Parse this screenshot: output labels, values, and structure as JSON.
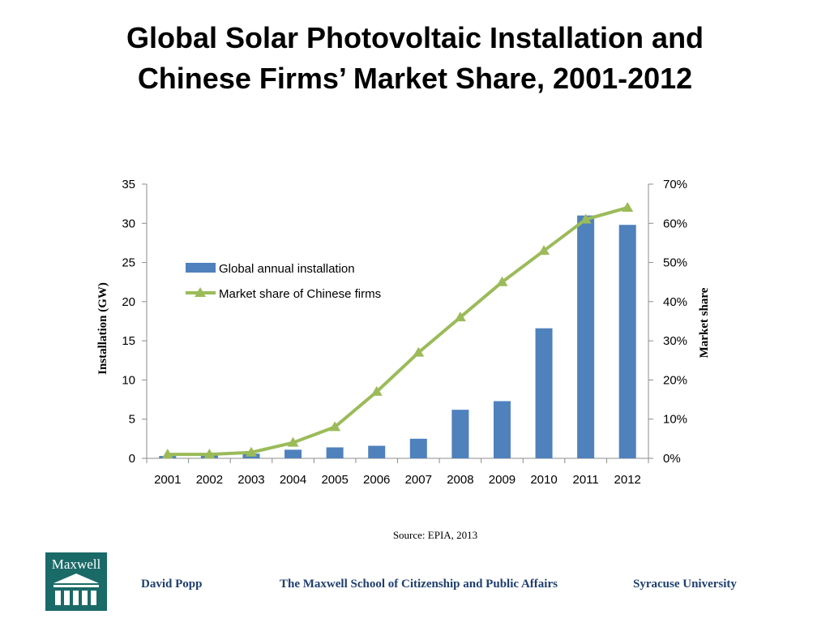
{
  "slide": {
    "title_line1": "Global Solar Photovoltaic Installation and",
    "title_line2": "Chinese Firms’ Market Share, 2001-2012",
    "source": "Source: EPIA, 2013",
    "logo_text": "Maxwell",
    "logo_color": "#1a6a68",
    "footer": {
      "author": "David Popp",
      "school": "The Maxwell School of Citizenship and Public Affairs",
      "university": "Syracuse University",
      "color": "#1f3f6f"
    }
  },
  "chart_data": {
    "type": "bar",
    "categories": [
      "2001",
      "2002",
      "2003",
      "2004",
      "2005",
      "2006",
      "2007",
      "2008",
      "2009",
      "2010",
      "2011",
      "2012"
    ],
    "series": [
      {
        "name": "Global annual installation",
        "type": "bar",
        "axis": "left",
        "color": "#4f81bd",
        "values": [
          0.3,
          0.4,
          0.6,
          1.1,
          1.4,
          1.6,
          2.5,
          6.2,
          7.3,
          16.6,
          31.0,
          29.8
        ]
      },
      {
        "name": "Market share of Chinese firms",
        "type": "line",
        "axis": "right",
        "color": "#9bbb59",
        "marker": "triangle",
        "values": [
          1,
          1,
          1.5,
          4,
          8,
          17,
          27,
          36,
          45,
          53,
          61,
          64
        ]
      }
    ],
    "ylabel": "Installation (GW)",
    "y2label": "Market share",
    "ylim": [
      0,
      35
    ],
    "y2lim": [
      0,
      70
    ],
    "yticks": [
      "0",
      "5",
      "10",
      "15",
      "20",
      "25",
      "30",
      "35"
    ],
    "y2ticks": [
      "0%",
      "10%",
      "20%",
      "30%",
      "40%",
      "50%",
      "60%",
      "70%"
    ],
    "legend_position": "upper-left",
    "grid": false
  }
}
